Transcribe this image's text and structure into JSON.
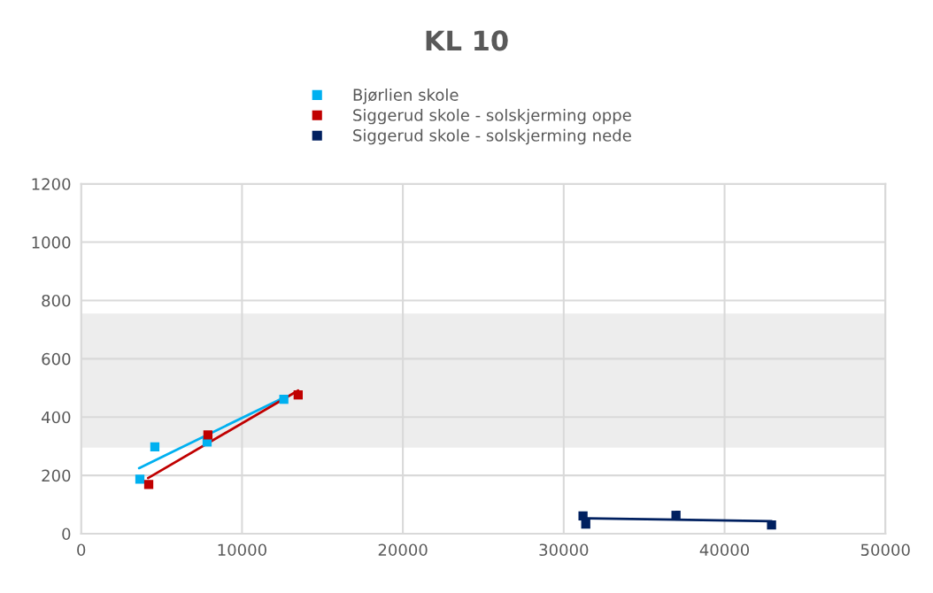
{
  "chart_data": {
    "type": "scatter",
    "title": "KL 10",
    "marker": "square",
    "grid": true,
    "legend": "top",
    "xlim": [
      0,
      50000
    ],
    "xticks": [
      0,
      10000,
      20000,
      30000,
      40000,
      50000
    ],
    "ylim": [
      0,
      1200
    ],
    "yticks": [
      0,
      200,
      400,
      600,
      800,
      1000,
      1200
    ],
    "bands": [
      {
        "axis": "y",
        "from": 295,
        "to": 755,
        "color": "#ededed"
      }
    ],
    "series": [
      {
        "name": "Bjørlien skole",
        "color": "#00b0f0",
        "x": [
          3650,
          4580,
          7830,
          12600
        ],
        "values": [
          187,
          298,
          315,
          461
        ]
      },
      {
        "name": "Siggerud skole - solskjerming oppe",
        "color": "#c00000",
        "x": [
          4200,
          7880,
          13490
        ],
        "values": [
          169,
          339,
          476
        ]
      },
      {
        "name": "Siggerud skole - solskjerming nede",
        "color": "#002060",
        "x": [
          31200,
          31370,
          36980,
          42920
        ],
        "values": [
          61,
          33,
          63,
          30
        ]
      },
      {
        "type": "line",
        "marker": "none",
        "color": "#00b0f0",
        "x": [
          3600,
          12600
        ],
        "values": [
          225,
          467
        ]
      },
      {
        "type": "line",
        "marker": "none",
        "color": "#c00000",
        "x": [
          4160,
          13490
        ],
        "values": [
          191,
          491
        ]
      },
      {
        "type": "line",
        "marker": "none",
        "color": "#002060",
        "x": [
          31390,
          42920
        ],
        "values": [
          53,
          43
        ]
      }
    ]
  }
}
